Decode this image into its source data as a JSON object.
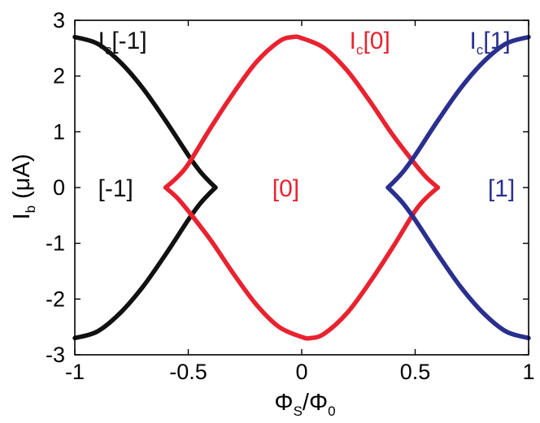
{
  "chart_data": {
    "type": "line",
    "xlabel": {
      "base": "Φ",
      "base_sub": "S",
      "sep": "/",
      "den": "Φ",
      "den_sub": "0"
    },
    "ylabel": {
      "base": "I",
      "sub": "b",
      "unit": " (μA)"
    },
    "xlim": [
      -1,
      1
    ],
    "ylim": [
      -3,
      3
    ],
    "grid": false,
    "xticks": [
      -1,
      -0.5,
      0,
      0.5,
      1
    ],
    "xtick_labels": [
      "-1",
      "-0.5",
      "0",
      "0.5",
      "1"
    ],
    "yticks": [
      -3,
      -2,
      -1,
      0,
      1,
      2,
      3
    ],
    "ytick_labels": [
      "-3",
      "-2",
      "-1",
      "0",
      "1",
      "2",
      "3"
    ],
    "series": [
      {
        "name": "Ic[-1]",
        "color": "#111111",
        "segments": [
          [
            [
              -1.0,
              2.7
            ],
            [
              -0.9,
              2.58
            ],
            [
              -0.8,
              2.25
            ],
            [
              -0.7,
              1.78
            ],
            [
              -0.6,
              1.2
            ],
            [
              -0.5,
              0.58
            ],
            [
              -0.45,
              0.3
            ],
            [
              -0.41,
              0.12
            ],
            [
              -0.38,
              0.0
            ]
          ],
          [
            [
              -1.0,
              -2.7
            ],
            [
              -0.9,
              -2.58
            ],
            [
              -0.8,
              -2.25
            ],
            [
              -0.7,
              -1.78
            ],
            [
              -0.6,
              -1.2
            ],
            [
              -0.5,
              -0.58
            ],
            [
              -0.45,
              -0.3
            ],
            [
              -0.41,
              -0.12
            ],
            [
              -0.38,
              0.0
            ]
          ]
        ]
      },
      {
        "name": "Ic[0]",
        "color": "#e8232f",
        "segments": [
          [
            [
              0.6,
              0.0
            ],
            [
              0.55,
              0.18
            ],
            [
              0.5,
              0.42
            ],
            [
              0.4,
              0.95
            ],
            [
              0.3,
              1.55
            ],
            [
              0.2,
              2.1
            ],
            [
              0.1,
              2.5
            ],
            [
              0.0,
              2.68
            ],
            [
              -0.04,
              2.7
            ],
            [
              -0.1,
              2.62
            ],
            [
              -0.2,
              2.25
            ],
            [
              -0.3,
              1.7
            ],
            [
              -0.4,
              1.08
            ],
            [
              -0.5,
              0.42
            ],
            [
              -0.55,
              0.18
            ],
            [
              -0.6,
              0.0
            ]
          ],
          [
            [
              -0.6,
              0.0
            ],
            [
              -0.55,
              -0.18
            ],
            [
              -0.5,
              -0.42
            ],
            [
              -0.4,
              -0.95
            ],
            [
              -0.3,
              -1.55
            ],
            [
              -0.2,
              -2.1
            ],
            [
              -0.1,
              -2.5
            ],
            [
              0.0,
              -2.68
            ],
            [
              0.04,
              -2.7
            ],
            [
              0.1,
              -2.62
            ],
            [
              0.2,
              -2.25
            ],
            [
              0.3,
              -1.7
            ],
            [
              0.4,
              -1.08
            ],
            [
              0.5,
              -0.42
            ],
            [
              0.55,
              -0.18
            ],
            [
              0.6,
              0.0
            ]
          ]
        ]
      },
      {
        "name": "Ic[1]",
        "color": "#2a2f8f",
        "segments": [
          [
            [
              0.38,
              0.0
            ],
            [
              0.41,
              0.12
            ],
            [
              0.45,
              0.3
            ],
            [
              0.5,
              0.58
            ],
            [
              0.6,
              1.2
            ],
            [
              0.7,
              1.78
            ],
            [
              0.8,
              2.25
            ],
            [
              0.9,
              2.58
            ],
            [
              1.0,
              2.7
            ]
          ],
          [
            [
              0.38,
              0.0
            ],
            [
              0.41,
              -0.12
            ],
            [
              0.45,
              -0.3
            ],
            [
              0.5,
              -0.58
            ],
            [
              0.6,
              -1.2
            ],
            [
              0.7,
              -1.78
            ],
            [
              0.8,
              -2.25
            ],
            [
              0.9,
              -2.58
            ],
            [
              1.0,
              -2.7
            ]
          ]
        ]
      }
    ],
    "annotations": [
      {
        "main": "I",
        "sub": "c",
        "rest": "[-1]",
        "color": "#111111",
        "x": -0.79,
        "y": 2.65
      },
      {
        "main": "I",
        "sub": "c",
        "rest": "[0]",
        "color": "#e8232f",
        "x": 0.3,
        "y": 2.65
      },
      {
        "main": "I",
        "sub": "c",
        "rest": "[1]",
        "color": "#2a2f8f",
        "x": 0.83,
        "y": 2.65
      },
      {
        "main": "",
        "sub": "",
        "rest": "[-1]",
        "color": "#111111",
        "x": -0.82,
        "y": 0.0
      },
      {
        "main": "",
        "sub": "",
        "rest": "[0]",
        "color": "#e8232f",
        "x": -0.07,
        "y": 0.0
      },
      {
        "main": "",
        "sub": "",
        "rest": "[1]",
        "color": "#2a2f8f",
        "x": 0.88,
        "y": 0.0
      }
    ]
  }
}
